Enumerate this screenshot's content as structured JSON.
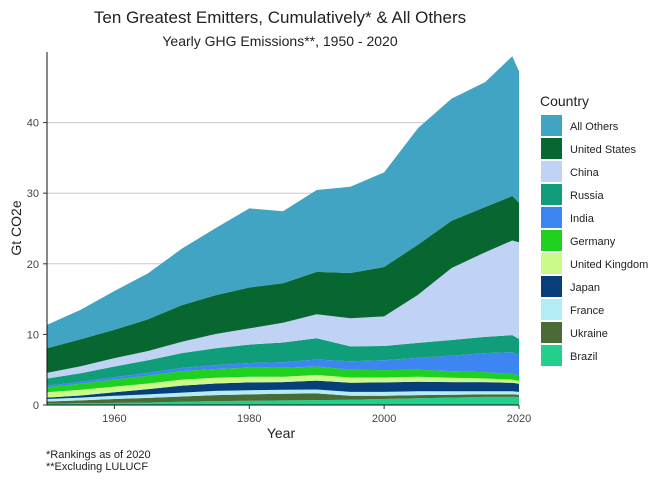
{
  "chart_data": {
    "type": "area",
    "stacked": true,
    "title": "Ten Greatest Emitters, Cumulatively* & All Others",
    "subtitle": "Yearly GHG Emissions**, 1950 - 2020",
    "xlabel": "Year",
    "ylabel": "Gt CO2e",
    "xlim": [
      1950,
      2020
    ],
    "ylim": [
      0,
      50
    ],
    "x_ticks": [
      1960,
      1980,
      2000,
      2020
    ],
    "y_ticks": [
      0,
      10,
      20,
      30,
      40
    ],
    "grid": "horizontal major",
    "legend_title": "Country",
    "legend_position": "right",
    "footnotes": [
      "*Rankings as of 2020",
      "**Excluding LULUCF"
    ],
    "x": [
      1950,
      1955,
      1960,
      1965,
      1970,
      1975,
      1980,
      1985,
      1990,
      1995,
      2000,
      2005,
      2010,
      2015,
      2019,
      2020
    ],
    "series": [
      {
        "name": "Brazil",
        "color": "#21d08a",
        "values": [
          0.2,
          0.25,
          0.3,
          0.35,
          0.45,
          0.55,
          0.6,
          0.65,
          0.7,
          0.75,
          0.85,
          0.95,
          1.05,
          1.15,
          1.15,
          1.15
        ]
      },
      {
        "name": "Ukraine",
        "color": "#4a6b35",
        "values": [
          0.3,
          0.4,
          0.55,
          0.65,
          0.75,
          0.85,
          0.9,
          0.95,
          0.95,
          0.55,
          0.45,
          0.45,
          0.4,
          0.35,
          0.35,
          0.3
        ]
      },
      {
        "name": "France",
        "color": "#b3ecf5",
        "values": [
          0.35,
          0.4,
          0.45,
          0.5,
          0.55,
          0.6,
          0.6,
          0.55,
          0.55,
          0.55,
          0.55,
          0.55,
          0.5,
          0.45,
          0.45,
          0.4
        ]
      },
      {
        "name": "Japan",
        "color": "#063f7a",
        "values": [
          0.2,
          0.3,
          0.5,
          0.75,
          1.0,
          1.05,
          1.1,
          1.1,
          1.25,
          1.3,
          1.35,
          1.35,
          1.3,
          1.3,
          1.2,
          1.15
        ]
      },
      {
        "name": "United Kingdom",
        "color": "#ccfa8a",
        "values": [
          0.75,
          0.8,
          0.8,
          0.8,
          0.85,
          0.8,
          0.8,
          0.75,
          0.8,
          0.75,
          0.7,
          0.7,
          0.6,
          0.5,
          0.45,
          0.4
        ]
      },
      {
        "name": "Germany",
        "color": "#1ed11e",
        "values": [
          0.7,
          0.85,
          1.0,
          1.1,
          1.2,
          1.25,
          1.3,
          1.25,
          1.2,
          1.1,
          1.05,
          1.0,
          0.95,
          0.9,
          0.8,
          0.75
        ]
      },
      {
        "name": "India",
        "color": "#3d86f2",
        "values": [
          0.25,
          0.3,
          0.35,
          0.4,
          0.45,
          0.55,
          0.65,
          0.8,
          1.0,
          1.2,
          1.4,
          1.7,
          2.2,
          2.7,
          3.1,
          2.9
        ]
      },
      {
        "name": "Russia",
        "color": "#0f9e79",
        "values": [
          1.0,
          1.2,
          1.5,
          1.8,
          2.1,
          2.4,
          2.6,
          2.8,
          3.0,
          2.1,
          2.0,
          2.1,
          2.2,
          2.3,
          2.4,
          2.3
        ]
      },
      {
        "name": "China",
        "color": "#c0d3f5",
        "values": [
          0.8,
          1.0,
          1.2,
          1.3,
          1.6,
          2.0,
          2.3,
          2.8,
          3.4,
          4.0,
          4.2,
          6.8,
          10.2,
          12.0,
          13.4,
          13.7
        ]
      },
      {
        "name": "United States",
        "color": "#086630",
        "values": [
          3.5,
          3.8,
          4.0,
          4.5,
          5.2,
          5.5,
          5.8,
          5.6,
          6.0,
          6.4,
          7.0,
          7.1,
          6.7,
          6.4,
          6.3,
          5.6
        ]
      },
      {
        "name": "All Others",
        "color": "#40a4c2",
        "values": [
          3.3,
          4.2,
          5.5,
          6.5,
          8.0,
          9.5,
          11.2,
          10.2,
          11.6,
          12.2,
          13.4,
          16.5,
          17.3,
          17.7,
          19.8,
          18.6
        ]
      }
    ]
  }
}
